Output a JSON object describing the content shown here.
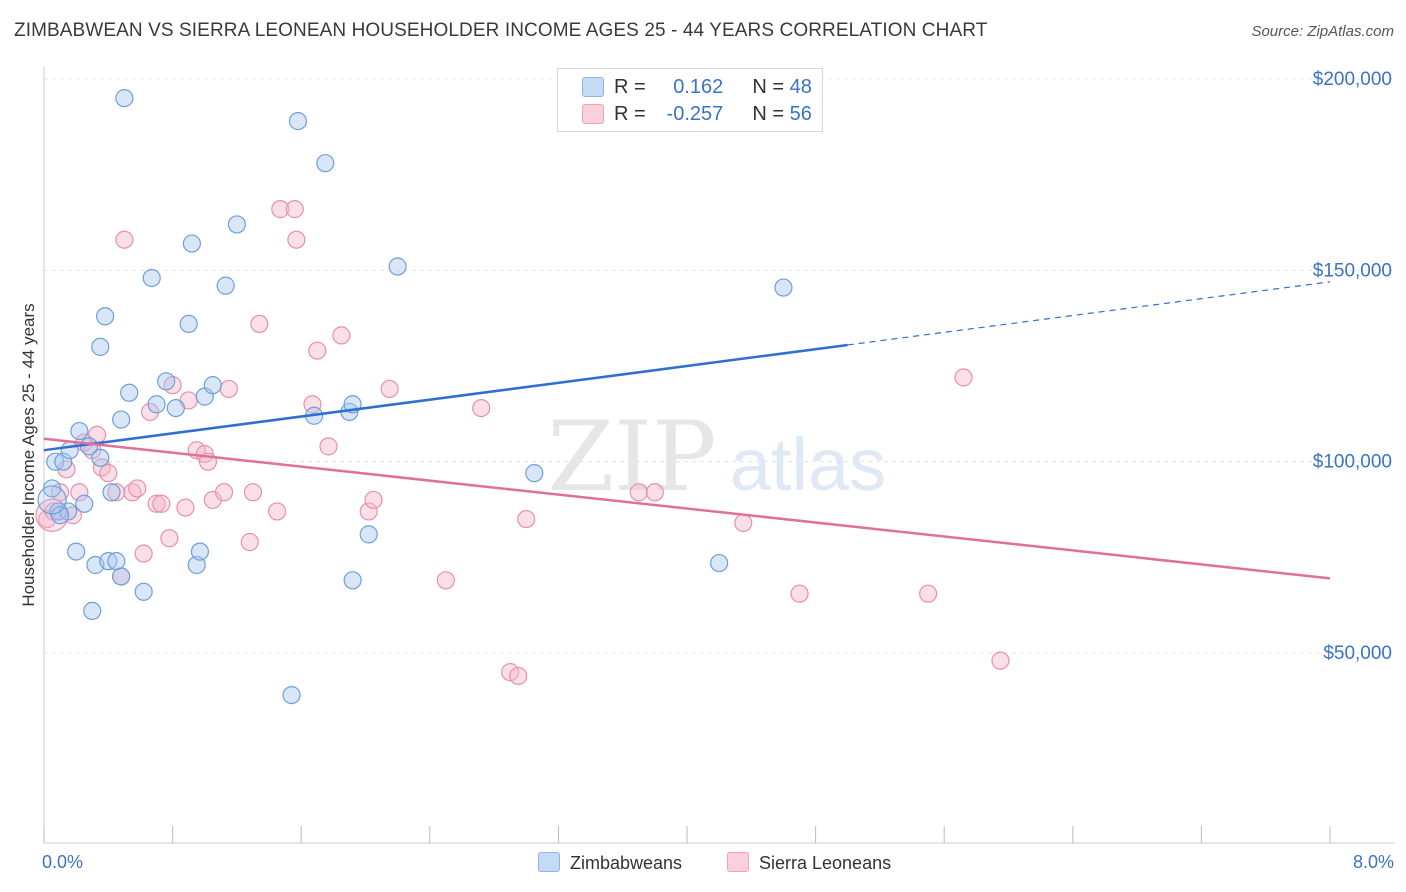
{
  "title": "ZIMBABWEAN VS SIERRA LEONEAN HOUSEHOLDER INCOME AGES 25 - 44 YEARS CORRELATION CHART",
  "source": "Source: ZipAtlas.com",
  "watermark": {
    "zip": "ZIP",
    "atlas": "atlas"
  },
  "legend": {
    "rows": [
      {
        "r_label": "R =",
        "r_value": "0.162",
        "n_label": "N =",
        "n_value": "48",
        "color": "#a8c8f0"
      },
      {
        "r_label": "R =",
        "r_value": "-0.257",
        "n_label": "N =",
        "n_value": "56",
        "color": "#f5b8cb"
      }
    ]
  },
  "bottom_legend": {
    "series1": "Zimbabweans",
    "series2": "Sierra Leoneans"
  },
  "chart_data": {
    "type": "scatter",
    "title": "ZIMBABWEAN VS SIERRA LEONEAN HOUSEHOLDER INCOME AGES 25 - 44 YEARS CORRELATION CHART",
    "xlabel": "",
    "ylabel": "Householder Income Ages 25 - 44 years",
    "xlim": [
      0,
      8
    ],
    "ylim": [
      10000,
      210000
    ],
    "x_tick_labels": [
      "0.0%",
      "8.0%"
    ],
    "y_ticks": [
      50000,
      100000,
      150000,
      200000
    ],
    "y_tick_labels": [
      "$50,000",
      "$100,000",
      "$150,000",
      "$200,000"
    ],
    "grid": true,
    "legend_placement": "top-center",
    "series": [
      {
        "name": "Zimbabweans",
        "color": "#a8c8f0",
        "stroke": "#6f9fd8",
        "trend": {
          "x": [
            0,
            5.0
          ],
          "y": [
            103000,
            130500
          ],
          "dashed_to": [
            8,
            147000
          ],
          "color": "#2f6fd0"
        },
        "points": [
          [
            0.05,
            93000
          ],
          [
            0.09,
            87000
          ],
          [
            0.07,
            100000
          ],
          [
            0.12,
            100000
          ],
          [
            0.16,
            103000
          ],
          [
            0.22,
            108000
          ],
          [
            0.25,
            89000
          ],
          [
            0.15,
            87000
          ],
          [
            0.2,
            76500
          ],
          [
            0.32,
            73000
          ],
          [
            0.4,
            74000
          ],
          [
            0.45,
            74000
          ],
          [
            0.3,
            61000
          ],
          [
            0.35,
            101000
          ],
          [
            0.35,
            130000
          ],
          [
            0.38,
            138000
          ],
          [
            0.48,
            111000
          ],
          [
            0.5,
            195000
          ],
          [
            0.53,
            118000
          ],
          [
            0.62,
            66000
          ],
          [
            0.48,
            70000
          ],
          [
            0.67,
            148000
          ],
          [
            0.7,
            115000
          ],
          [
            0.76,
            121000
          ],
          [
            0.82,
            114000
          ],
          [
            0.9,
            136000
          ],
          [
            0.92,
            157000
          ],
          [
            0.95,
            73000
          ],
          [
            0.97,
            76500
          ],
          [
            1.0,
            117000
          ],
          [
            1.05,
            120000
          ],
          [
            1.13,
            146000
          ],
          [
            1.2,
            162000
          ],
          [
            1.54,
            39000
          ],
          [
            1.58,
            189000
          ],
          [
            1.68,
            112000
          ],
          [
            1.75,
            178000
          ],
          [
            1.9,
            113000
          ],
          [
            1.92,
            115000
          ],
          [
            1.92,
            69000
          ],
          [
            2.02,
            81000
          ],
          [
            2.2,
            151000
          ],
          [
            3.05,
            97000
          ],
          [
            4.2,
            73500
          ],
          [
            4.6,
            145500
          ],
          [
            0.1,
            86000
          ],
          [
            0.28,
            104000
          ],
          [
            0.42,
            92000
          ]
        ]
      },
      {
        "name": "Sierra Leoneans",
        "color": "#f5b8cb",
        "stroke": "#e890ab",
        "trend": {
          "x": [
            0,
            8
          ],
          "y": [
            106000,
            69500
          ],
          "color": "#e0709a"
        },
        "points": [
          [
            0.02,
            85000
          ],
          [
            0.06,
            87000
          ],
          [
            0.1,
            92000
          ],
          [
            0.14,
            98000
          ],
          [
            0.18,
            86000
          ],
          [
            0.22,
            92000
          ],
          [
            0.25,
            105000
          ],
          [
            0.3,
            103000
          ],
          [
            0.33,
            107000
          ],
          [
            0.36,
            98500
          ],
          [
            0.4,
            97000
          ],
          [
            0.45,
            92000
          ],
          [
            0.48,
            70000
          ],
          [
            0.5,
            158000
          ],
          [
            0.55,
            92000
          ],
          [
            0.58,
            93000
          ],
          [
            0.62,
            76000
          ],
          [
            0.66,
            113000
          ],
          [
            0.7,
            89000
          ],
          [
            0.73,
            89000
          ],
          [
            0.78,
            80000
          ],
          [
            0.8,
            120000
          ],
          [
            0.88,
            88000
          ],
          [
            0.9,
            116000
          ],
          [
            0.95,
            103000
          ],
          [
            1.0,
            102000
          ],
          [
            1.02,
            100000
          ],
          [
            1.05,
            90000
          ],
          [
            1.12,
            92000
          ],
          [
            1.15,
            119000
          ],
          [
            1.28,
            79000
          ],
          [
            1.3,
            92000
          ],
          [
            1.34,
            136000
          ],
          [
            1.45,
            87000
          ],
          [
            1.47,
            166000
          ],
          [
            1.56,
            166000
          ],
          [
            1.57,
            158000
          ],
          [
            1.67,
            115000
          ],
          [
            1.7,
            129000
          ],
          [
            1.77,
            104000
          ],
          [
            1.85,
            133000
          ],
          [
            2.02,
            87000
          ],
          [
            2.05,
            90000
          ],
          [
            2.15,
            119000
          ],
          [
            2.5,
            69000
          ],
          [
            2.72,
            114000
          ],
          [
            2.9,
            45000
          ],
          [
            2.95,
            44000
          ],
          [
            3.0,
            85000
          ],
          [
            3.7,
            92000
          ],
          [
            3.8,
            92000
          ],
          [
            4.35,
            84000
          ],
          [
            4.7,
            65500
          ],
          [
            5.5,
            65500
          ],
          [
            5.72,
            122000
          ],
          [
            5.95,
            48000
          ]
        ]
      }
    ]
  }
}
